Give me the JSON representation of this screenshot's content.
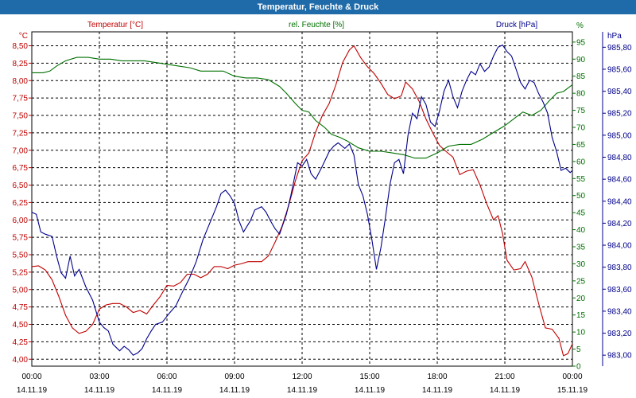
{
  "title": "Temperatur, Feuchte & Druck",
  "chart_data": {
    "type": "line",
    "title": "Temperatur, Feuchte & Druck",
    "colors": {
      "temp": "#c00000",
      "hum": "#007000",
      "press": "#00008b"
    },
    "axes": {
      "temp": {
        "unit": "°C",
        "label": "Temperatur [°C]",
        "range": [
          3.9,
          8.7
        ],
        "ticks": [
          "4,00",
          "4,25",
          "4,50",
          "4,75",
          "5,00",
          "5,25",
          "5,50",
          "5,75",
          "6,00",
          "6,25",
          "6,50",
          "6,75",
          "7,00",
          "7,25",
          "7,50",
          "7,75",
          "8,00",
          "8,25",
          "8,50"
        ]
      },
      "hum": {
        "unit": "%",
        "label": "rel. Feuchte [%]",
        "range": [
          0,
          98
        ],
        "ticks": [
          "0",
          "5",
          "10",
          "15",
          "20",
          "25",
          "30",
          "35",
          "40",
          "45",
          "50",
          "55",
          "60",
          "65",
          "70",
          "75",
          "80",
          "85",
          "90",
          "95",
          "%"
        ]
      },
      "press": {
        "unit": "hPa",
        "label": "Druck [hPa]",
        "range": [
          982.9,
          985.94
        ],
        "ticks": [
          "983,00",
          "983,20",
          "983,40",
          "983,60",
          "983,80",
          "984,00",
          "984,20",
          "984,40",
          "984,60",
          "984,80",
          "985,00",
          "985,20",
          "985,40",
          "985,60",
          "985,80"
        ]
      }
    },
    "x_ticks": [
      {
        "time": "00:00",
        "date": "14.11.19"
      },
      {
        "time": "03:00",
        "date": "14.11.19"
      },
      {
        "time": "06:00",
        "date": "14.11.19"
      },
      {
        "time": "09:00",
        "date": "14.11.19"
      },
      {
        "time": "12:00",
        "date": "14.11.19"
      },
      {
        "time": "15:00",
        "date": "14.11.19"
      },
      {
        "time": "18:00",
        "date": "14.11.19"
      },
      {
        "time": "21:00",
        "date": "14.11.19"
      },
      {
        "time": "00:00",
        "date": "15.11.19"
      }
    ],
    "x_range_hours": [
      0,
      24
    ],
    "series": [
      {
        "name": "Temperatur [°C]",
        "axis": "temp",
        "points": [
          [
            0,
            5.33
          ],
          [
            0.3,
            5.34
          ],
          [
            0.6,
            5.28
          ],
          [
            0.9,
            5.14
          ],
          [
            1.2,
            4.9
          ],
          [
            1.5,
            4.63
          ],
          [
            1.8,
            4.45
          ],
          [
            2.1,
            4.37
          ],
          [
            2.4,
            4.4
          ],
          [
            2.7,
            4.5
          ],
          [
            3.0,
            4.72
          ],
          [
            3.3,
            4.78
          ],
          [
            3.6,
            4.8
          ],
          [
            3.9,
            4.8
          ],
          [
            4.2,
            4.75
          ],
          [
            4.5,
            4.67
          ],
          [
            4.8,
            4.7
          ],
          [
            5.1,
            4.65
          ],
          [
            5.4,
            4.78
          ],
          [
            5.7,
            4.9
          ],
          [
            6.0,
            5.06
          ],
          [
            6.3,
            5.05
          ],
          [
            6.6,
            5.1
          ],
          [
            6.9,
            5.22
          ],
          [
            7.2,
            5.22
          ],
          [
            7.5,
            5.17
          ],
          [
            7.8,
            5.22
          ],
          [
            8.1,
            5.33
          ],
          [
            8.4,
            5.33
          ],
          [
            8.7,
            5.3
          ],
          [
            9.0,
            5.35
          ],
          [
            9.3,
            5.37
          ],
          [
            9.6,
            5.4
          ],
          [
            9.9,
            5.4
          ],
          [
            10.2,
            5.4
          ],
          [
            10.5,
            5.48
          ],
          [
            10.8,
            5.68
          ],
          [
            11.1,
            5.9
          ],
          [
            11.4,
            6.2
          ],
          [
            11.7,
            6.56
          ],
          [
            12.0,
            6.85
          ],
          [
            12.3,
            6.96
          ],
          [
            12.6,
            7.26
          ],
          [
            12.9,
            7.5
          ],
          [
            13.2,
            7.67
          ],
          [
            13.5,
            7.94
          ],
          [
            13.8,
            8.26
          ],
          [
            14.1,
            8.44
          ],
          [
            14.3,
            8.5
          ],
          [
            14.6,
            8.33
          ],
          [
            14.9,
            8.2
          ],
          [
            15.2,
            8.1
          ],
          [
            15.5,
            7.96
          ],
          [
            15.8,
            7.8
          ],
          [
            16.1,
            7.74
          ],
          [
            16.4,
            7.78
          ],
          [
            16.6,
            7.98
          ],
          [
            16.9,
            7.88
          ],
          [
            17.2,
            7.7
          ],
          [
            17.5,
            7.45
          ],
          [
            17.8,
            7.25
          ],
          [
            18.1,
            7.07
          ],
          [
            18.4,
            6.98
          ],
          [
            18.7,
            6.9
          ],
          [
            19.0,
            6.65
          ],
          [
            19.3,
            6.7
          ],
          [
            19.6,
            6.72
          ],
          [
            19.9,
            6.5
          ],
          [
            20.2,
            6.23
          ],
          [
            20.5,
            6.0
          ],
          [
            20.7,
            6.06
          ],
          [
            20.9,
            5.8
          ],
          [
            21.1,
            5.42
          ],
          [
            21.4,
            5.28
          ],
          [
            21.7,
            5.3
          ],
          [
            21.9,
            5.4
          ],
          [
            22.2,
            5.18
          ],
          [
            22.5,
            4.8
          ],
          [
            22.8,
            4.45
          ],
          [
            23.1,
            4.43
          ],
          [
            23.4,
            4.3
          ],
          [
            23.6,
            4.05
          ],
          [
            23.8,
            4.08
          ],
          [
            24.0,
            4.22
          ]
        ]
      },
      {
        "name": "rel. Feuchte [%]",
        "axis": "hum",
        "points": [
          [
            0,
            86
          ],
          [
            0.5,
            86
          ],
          [
            0.8,
            86.5
          ],
          [
            1.1,
            88
          ],
          [
            1.5,
            89.5
          ],
          [
            2.0,
            90.5
          ],
          [
            2.5,
            90.5
          ],
          [
            3.0,
            90
          ],
          [
            3.5,
            90
          ],
          [
            4.0,
            89.5
          ],
          [
            4.5,
            89.5
          ],
          [
            5.0,
            89.5
          ],
          [
            5.5,
            89
          ],
          [
            6.0,
            88.5
          ],
          [
            6.5,
            88
          ],
          [
            7.0,
            87.5
          ],
          [
            7.5,
            86.5
          ],
          [
            8.0,
            86.5
          ],
          [
            8.5,
            86.5
          ],
          [
            9.0,
            85
          ],
          [
            9.5,
            84.5
          ],
          [
            10.0,
            84.5
          ],
          [
            10.5,
            84
          ],
          [
            11.0,
            82
          ],
          [
            11.3,
            80
          ],
          [
            11.7,
            77
          ],
          [
            12.0,
            75
          ],
          [
            12.3,
            74.5
          ],
          [
            12.6,
            72
          ],
          [
            13.0,
            70
          ],
          [
            13.3,
            68
          ],
          [
            13.7,
            67
          ],
          [
            14.0,
            66
          ],
          [
            14.5,
            64
          ],
          [
            15.0,
            63
          ],
          [
            15.5,
            63
          ],
          [
            16.0,
            62.5
          ],
          [
            16.5,
            62
          ],
          [
            17.0,
            61
          ],
          [
            17.5,
            61
          ],
          [
            18.0,
            62.5
          ],
          [
            18.5,
            64.5
          ],
          [
            19.0,
            65
          ],
          [
            19.5,
            65
          ],
          [
            20.0,
            66.5
          ],
          [
            20.5,
            68.5
          ],
          [
            21.0,
            70.5
          ],
          [
            21.5,
            73
          ],
          [
            21.8,
            74.5
          ],
          [
            22.2,
            73.5
          ],
          [
            22.6,
            75
          ],
          [
            23.0,
            78
          ],
          [
            23.3,
            80
          ],
          [
            23.6,
            80.5
          ],
          [
            24.0,
            82.5
          ]
        ]
      },
      {
        "name": "Druck [hPa]",
        "axis": "press",
        "points": [
          [
            0,
            984.3
          ],
          [
            0.2,
            984.28
          ],
          [
            0.4,
            984.12
          ],
          [
            0.6,
            984.1
          ],
          [
            0.9,
            984.08
          ],
          [
            1.1,
            983.9
          ],
          [
            1.3,
            983.75
          ],
          [
            1.5,
            983.7
          ],
          [
            1.7,
            983.9
          ],
          [
            1.9,
            983.72
          ],
          [
            2.1,
            983.78
          ],
          [
            2.4,
            983.62
          ],
          [
            2.7,
            983.5
          ],
          [
            3.0,
            983.3
          ],
          [
            3.2,
            983.25
          ],
          [
            3.4,
            983.22
          ],
          [
            3.6,
            983.1
          ],
          [
            3.9,
            983.04
          ],
          [
            4.1,
            983.08
          ],
          [
            4.3,
            983.05
          ],
          [
            4.5,
            983.0
          ],
          [
            4.7,
            983.02
          ],
          [
            4.9,
            983.06
          ],
          [
            5.1,
            983.15
          ],
          [
            5.3,
            983.22
          ],
          [
            5.5,
            983.28
          ],
          [
            5.8,
            983.3
          ],
          [
            6.1,
            983.38
          ],
          [
            6.4,
            983.45
          ],
          [
            6.7,
            983.58
          ],
          [
            7.0,
            983.7
          ],
          [
            7.3,
            983.85
          ],
          [
            7.6,
            984.05
          ],
          [
            7.9,
            984.2
          ],
          [
            8.2,
            984.35
          ],
          [
            8.4,
            984.47
          ],
          [
            8.6,
            984.5
          ],
          [
            8.8,
            984.45
          ],
          [
            9.0,
            984.38
          ],
          [
            9.2,
            984.22
          ],
          [
            9.4,
            984.12
          ],
          [
            9.7,
            984.22
          ],
          [
            9.9,
            984.32
          ],
          [
            10.2,
            984.35
          ],
          [
            10.4,
            984.3
          ],
          [
            10.6,
            984.22
          ],
          [
            10.8,
            984.15
          ],
          [
            11.0,
            984.1
          ],
          [
            11.3,
            984.28
          ],
          [
            11.5,
            984.45
          ],
          [
            11.8,
            984.75
          ],
          [
            12.0,
            984.72
          ],
          [
            12.2,
            984.78
          ],
          [
            12.4,
            984.65
          ],
          [
            12.6,
            984.6
          ],
          [
            12.9,
            984.72
          ],
          [
            13.2,
            984.85
          ],
          [
            13.4,
            984.9
          ],
          [
            13.6,
            984.93
          ],
          [
            13.9,
            984.88
          ],
          [
            14.1,
            984.92
          ],
          [
            14.3,
            984.82
          ],
          [
            14.5,
            984.55
          ],
          [
            14.7,
            984.45
          ],
          [
            14.9,
            984.28
          ],
          [
            15.1,
            984.05
          ],
          [
            15.3,
            983.78
          ],
          [
            15.5,
            983.98
          ],
          [
            15.7,
            984.25
          ],
          [
            15.9,
            984.55
          ],
          [
            16.1,
            984.75
          ],
          [
            16.3,
            984.78
          ],
          [
            16.5,
            984.65
          ],
          [
            16.7,
            985.0
          ],
          [
            16.9,
            985.2
          ],
          [
            17.1,
            985.15
          ],
          [
            17.3,
            985.35
          ],
          [
            17.5,
            985.28
          ],
          [
            17.7,
            985.12
          ],
          [
            17.9,
            985.08
          ],
          [
            18.1,
            985.22
          ],
          [
            18.3,
            985.4
          ],
          [
            18.5,
            985.5
          ],
          [
            18.7,
            985.35
          ],
          [
            18.9,
            985.25
          ],
          [
            19.1,
            985.4
          ],
          [
            19.3,
            985.5
          ],
          [
            19.5,
            985.58
          ],
          [
            19.7,
            985.55
          ],
          [
            19.9,
            985.65
          ],
          [
            20.1,
            985.58
          ],
          [
            20.3,
            985.62
          ],
          [
            20.5,
            985.72
          ],
          [
            20.7,
            985.8
          ],
          [
            20.9,
            985.82
          ],
          [
            21.1,
            985.76
          ],
          [
            21.3,
            985.72
          ],
          [
            21.5,
            985.6
          ],
          [
            21.7,
            985.48
          ],
          [
            21.9,
            985.42
          ],
          [
            22.1,
            985.5
          ],
          [
            22.3,
            985.48
          ],
          [
            22.5,
            985.38
          ],
          [
            22.7,
            985.3
          ],
          [
            22.9,
            985.2
          ],
          [
            23.1,
            984.98
          ],
          [
            23.3,
            984.85
          ],
          [
            23.5,
            984.68
          ],
          [
            23.7,
            984.7
          ],
          [
            23.9,
            984.66
          ],
          [
            24.0,
            984.68
          ]
        ]
      }
    ]
  }
}
